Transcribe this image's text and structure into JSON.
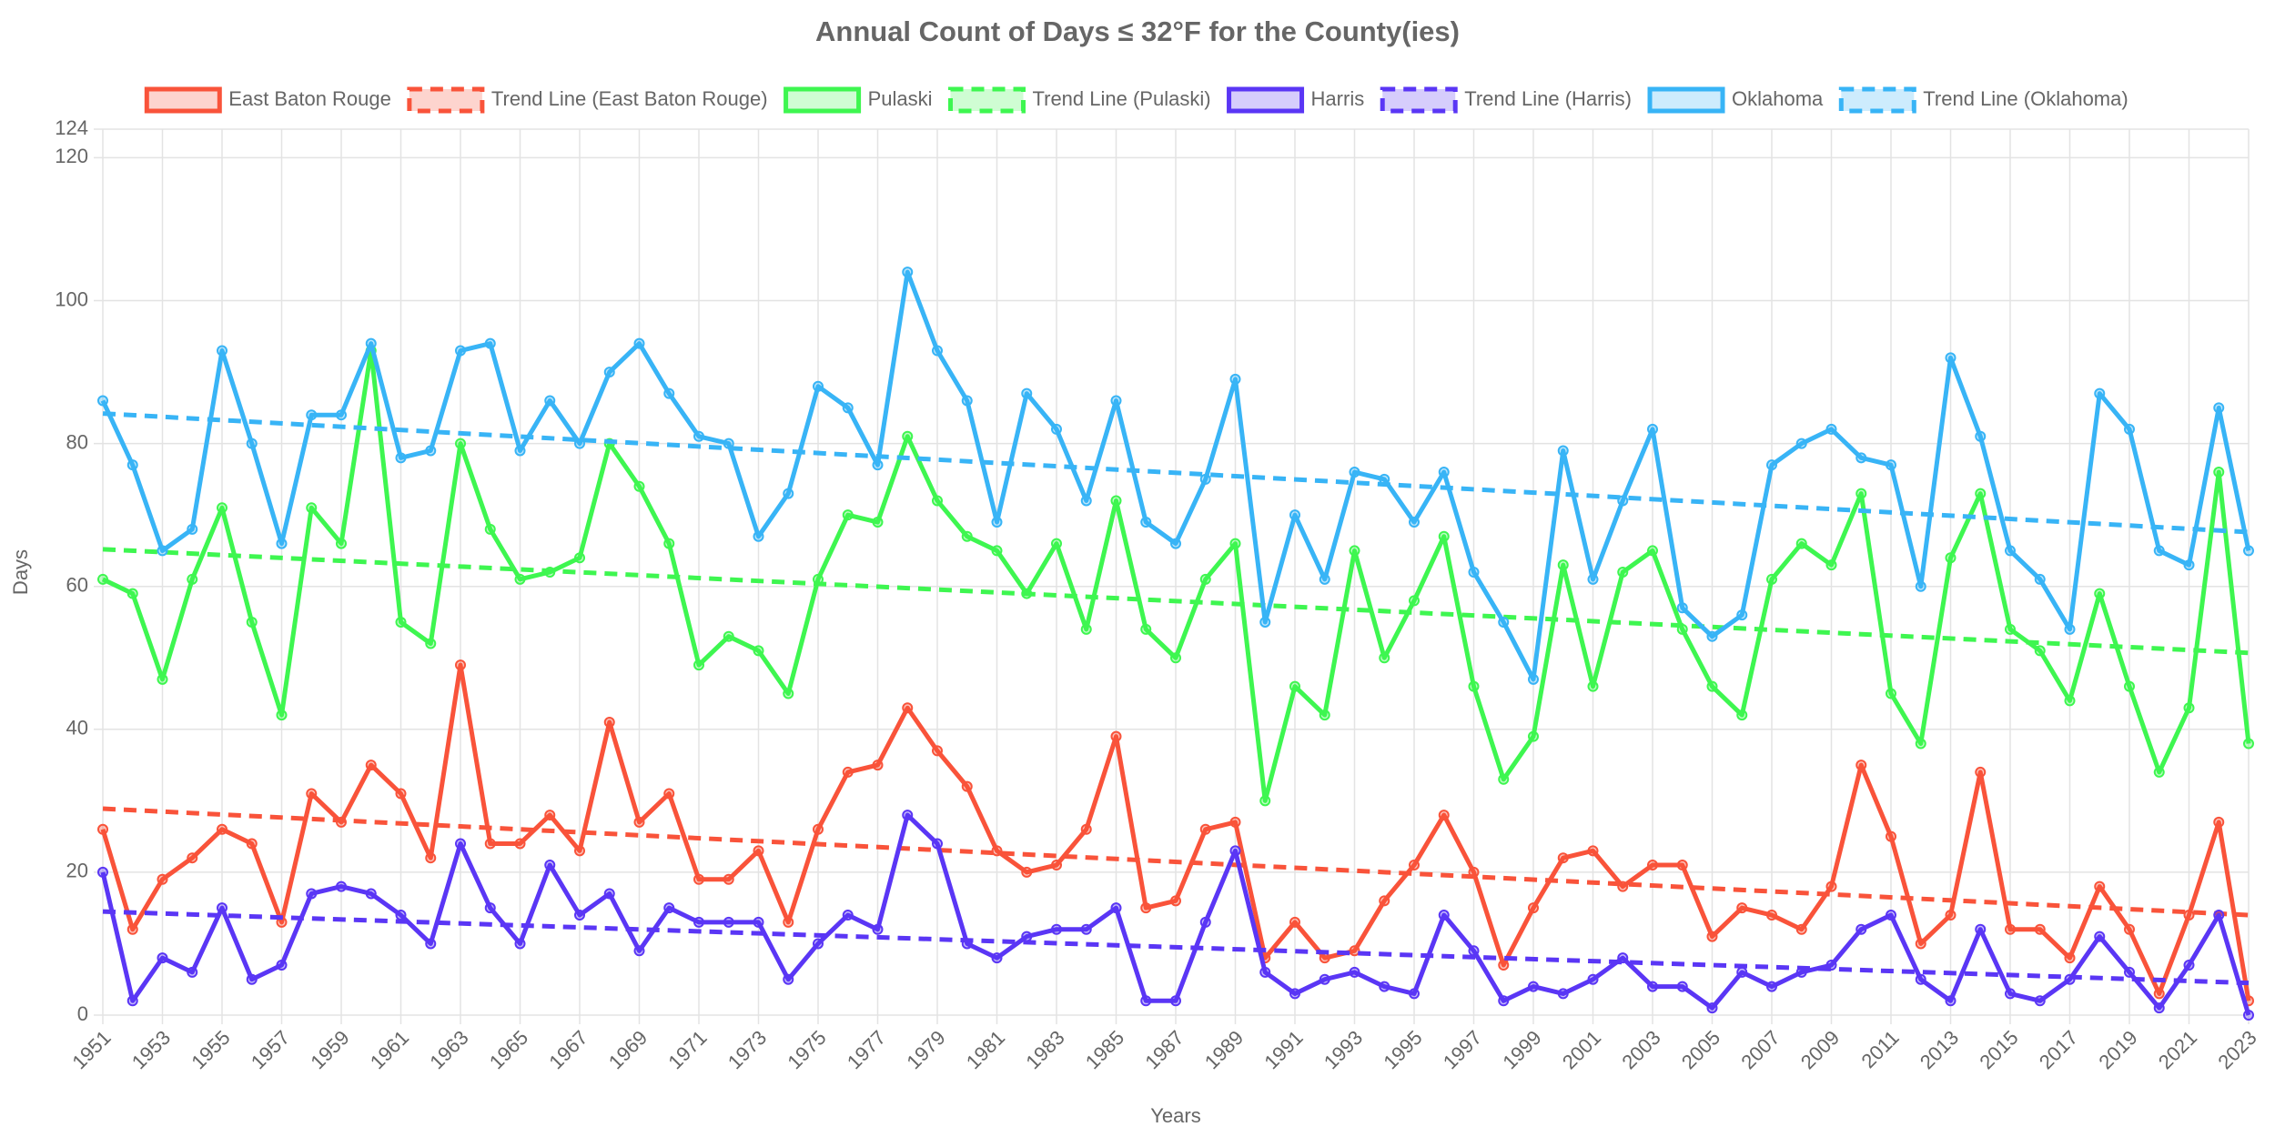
{
  "chart_data": {
    "type": "line",
    "title": "Annual Count of Days ≤ 32°F for the County(ies)",
    "x_label": "Years",
    "y_label": "Days",
    "x": [
      1951,
      1952,
      1953,
      1954,
      1955,
      1956,
      1957,
      1958,
      1959,
      1960,
      1961,
      1962,
      1963,
      1964,
      1965,
      1966,
      1967,
      1968,
      1969,
      1970,
      1971,
      1972,
      1973,
      1974,
      1975,
      1976,
      1977,
      1978,
      1979,
      1980,
      1981,
      1982,
      1983,
      1984,
      1985,
      1986,
      1987,
      1988,
      1989,
      1990,
      1991,
      1992,
      1993,
      1994,
      1995,
      1996,
      1997,
      1998,
      1999,
      2000,
      2001,
      2002,
      2003,
      2004,
      2005,
      2006,
      2007,
      2008,
      2009,
      2010,
      2011,
      2012,
      2013,
      2014,
      2015,
      2016,
      2017,
      2018,
      2019,
      2020,
      2021,
      2022,
      2023
    ],
    "xlim": [
      1951,
      2023
    ],
    "xticks": [
      1951,
      1953,
      1955,
      1957,
      1959,
      1961,
      1963,
      1965,
      1967,
      1969,
      1971,
      1973,
      1975,
      1977,
      1979,
      1981,
      1983,
      1985,
      1987,
      1989,
      1991,
      1993,
      1995,
      1997,
      1999,
      2001,
      2003,
      2005,
      2007,
      2009,
      2011,
      2013,
      2015,
      2017,
      2019,
      2021,
      2023
    ],
    "ylim": [
      0,
      124
    ],
    "yticks": [
      0,
      20,
      40,
      60,
      80,
      100,
      120,
      124
    ],
    "grid": true,
    "legend": "top",
    "series": [
      {
        "name": "East Baton Rouge",
        "color": "#f9533a",
        "line_style": "solid",
        "values": [
          26,
          12,
          19,
          22,
          26,
          24,
          13,
          31,
          27,
          35,
          31,
          22,
          49,
          24,
          24,
          28,
          23,
          41,
          27,
          31,
          19,
          19,
          23,
          13,
          26,
          34,
          35,
          43,
          37,
          32,
          23,
          20,
          21,
          26,
          39,
          15,
          16,
          26,
          27,
          8,
          13,
          8,
          9,
          16,
          21,
          28,
          20,
          7,
          15,
          22,
          23,
          18,
          21,
          21,
          11,
          15,
          14,
          12,
          18,
          35,
          25,
          10,
          14,
          34,
          12,
          12,
          8,
          18,
          12,
          3,
          14,
          27,
          2
        ]
      },
      {
        "name": "Trend Line (East Baton Rouge)",
        "color": "#f9533a",
        "line_style": "dashed",
        "x": [
          1951,
          2023
        ],
        "values": [
          28.9,
          14
        ]
      },
      {
        "name": "Pulaski",
        "color": "#3ef650",
        "line_style": "solid",
        "values": [
          61,
          59,
          47,
          61,
          71,
          55,
          42,
          71,
          66,
          93,
          55,
          52,
          80,
          68,
          61,
          62,
          64,
          80,
          74,
          66,
          49,
          53,
          51,
          45,
          61,
          70,
          69,
          81,
          72,
          67,
          65,
          59,
          66,
          54,
          72,
          54,
          50,
          61,
          66,
          30,
          46,
          42,
          65,
          50,
          58,
          67,
          46,
          33,
          39,
          63,
          46,
          62,
          65,
          54,
          46,
          42,
          61,
          66,
          63,
          73,
          45,
          38,
          64,
          73,
          54,
          51,
          44,
          59,
          46,
          34,
          43,
          76,
          38
        ]
      },
      {
        "name": "Trend Line (Pulaski)",
        "color": "#3ef650",
        "line_style": "dashed",
        "x": [
          1951,
          2023
        ],
        "values": [
          65.2,
          50.7
        ]
      },
      {
        "name": "Harris",
        "color": "#5a36f5",
        "line_style": "solid",
        "values": [
          20,
          2,
          8,
          6,
          15,
          5,
          7,
          17,
          18,
          17,
          14,
          10,
          24,
          15,
          10,
          21,
          14,
          17,
          9,
          15,
          13,
          13,
          13,
          5,
          10,
          14,
          12,
          28,
          24,
          10,
          8,
          11,
          12,
          12,
          15,
          2,
          2,
          13,
          23,
          6,
          3,
          5,
          6,
          4,
          3,
          14,
          9,
          2,
          4,
          3,
          5,
          8,
          4,
          4,
          1,
          6,
          4,
          6,
          7,
          12,
          14,
          5,
          2,
          12,
          3,
          2,
          5,
          11,
          6,
          1,
          7,
          14,
          0
        ]
      },
      {
        "name": "Trend Line (Harris)",
        "color": "#5a36f5",
        "line_style": "dashed",
        "x": [
          1951,
          2023
        ],
        "values": [
          14.5,
          4.5
        ]
      },
      {
        "name": "Oklahoma",
        "color": "#38b4f6",
        "line_style": "solid",
        "values": [
          86,
          77,
          65,
          68,
          93,
          80,
          66,
          84,
          84,
          94,
          78,
          79,
          93,
          94,
          79,
          86,
          80,
          90,
          94,
          87,
          81,
          80,
          67,
          73,
          88,
          85,
          77,
          104,
          93,
          86,
          69,
          87,
          82,
          72,
          86,
          69,
          66,
          75,
          89,
          55,
          70,
          61,
          76,
          75,
          69,
          76,
          62,
          55,
          47,
          79,
          61,
          72,
          82,
          57,
          53,
          56,
          77,
          80,
          82,
          78,
          77,
          60,
          92,
          81,
          65,
          61,
          54,
          87,
          82,
          65,
          63,
          85,
          65
        ]
      },
      {
        "name": "Trend Line (Oklahoma)",
        "color": "#38b4f6",
        "line_style": "dashed",
        "x": [
          1951,
          2023
        ],
        "values": [
          84.2,
          67.6
        ]
      }
    ]
  }
}
